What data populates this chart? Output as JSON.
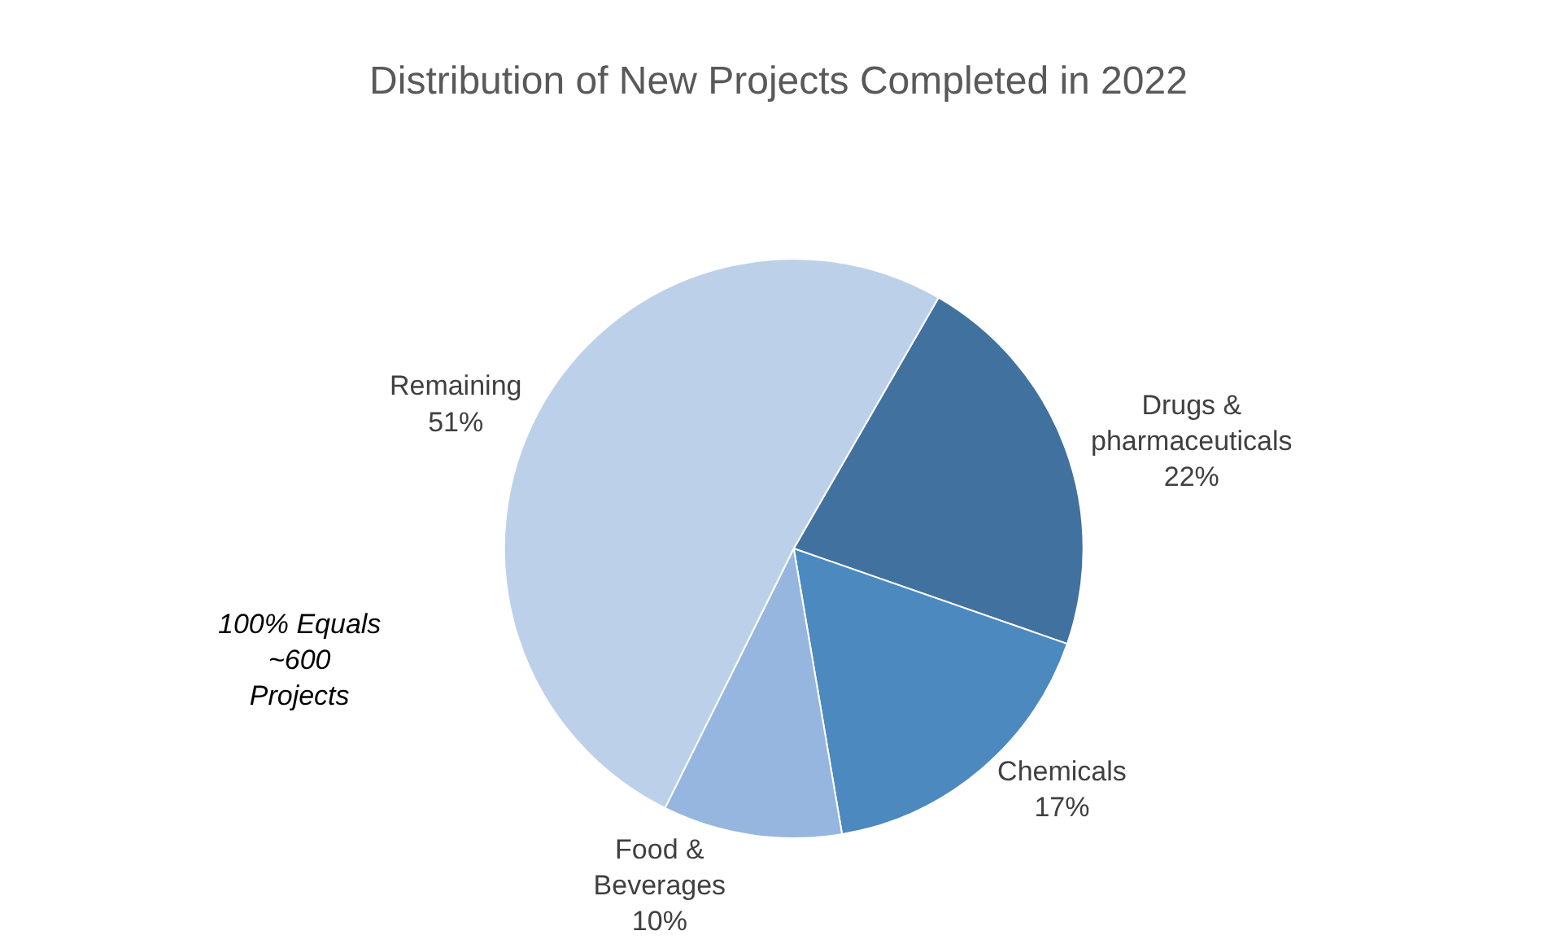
{
  "chart_data": {
    "type": "pie",
    "title": "Distribution of New Projects Completed in 2022",
    "categories": [
      "Drugs & pharmaceuticals",
      "Chemicals",
      "Food & Beverages",
      "Remaining"
    ],
    "values": [
      22,
      17,
      10,
      51
    ],
    "value_labels": [
      "22%",
      "17%",
      "10%",
      "51%"
    ],
    "colors": [
      "#41729f",
      "#4b89bf",
      "#96b6df",
      "#bdd0ea"
    ],
    "annotations": [
      "100% Equals ~600 Projects"
    ],
    "legend": false
  }
}
